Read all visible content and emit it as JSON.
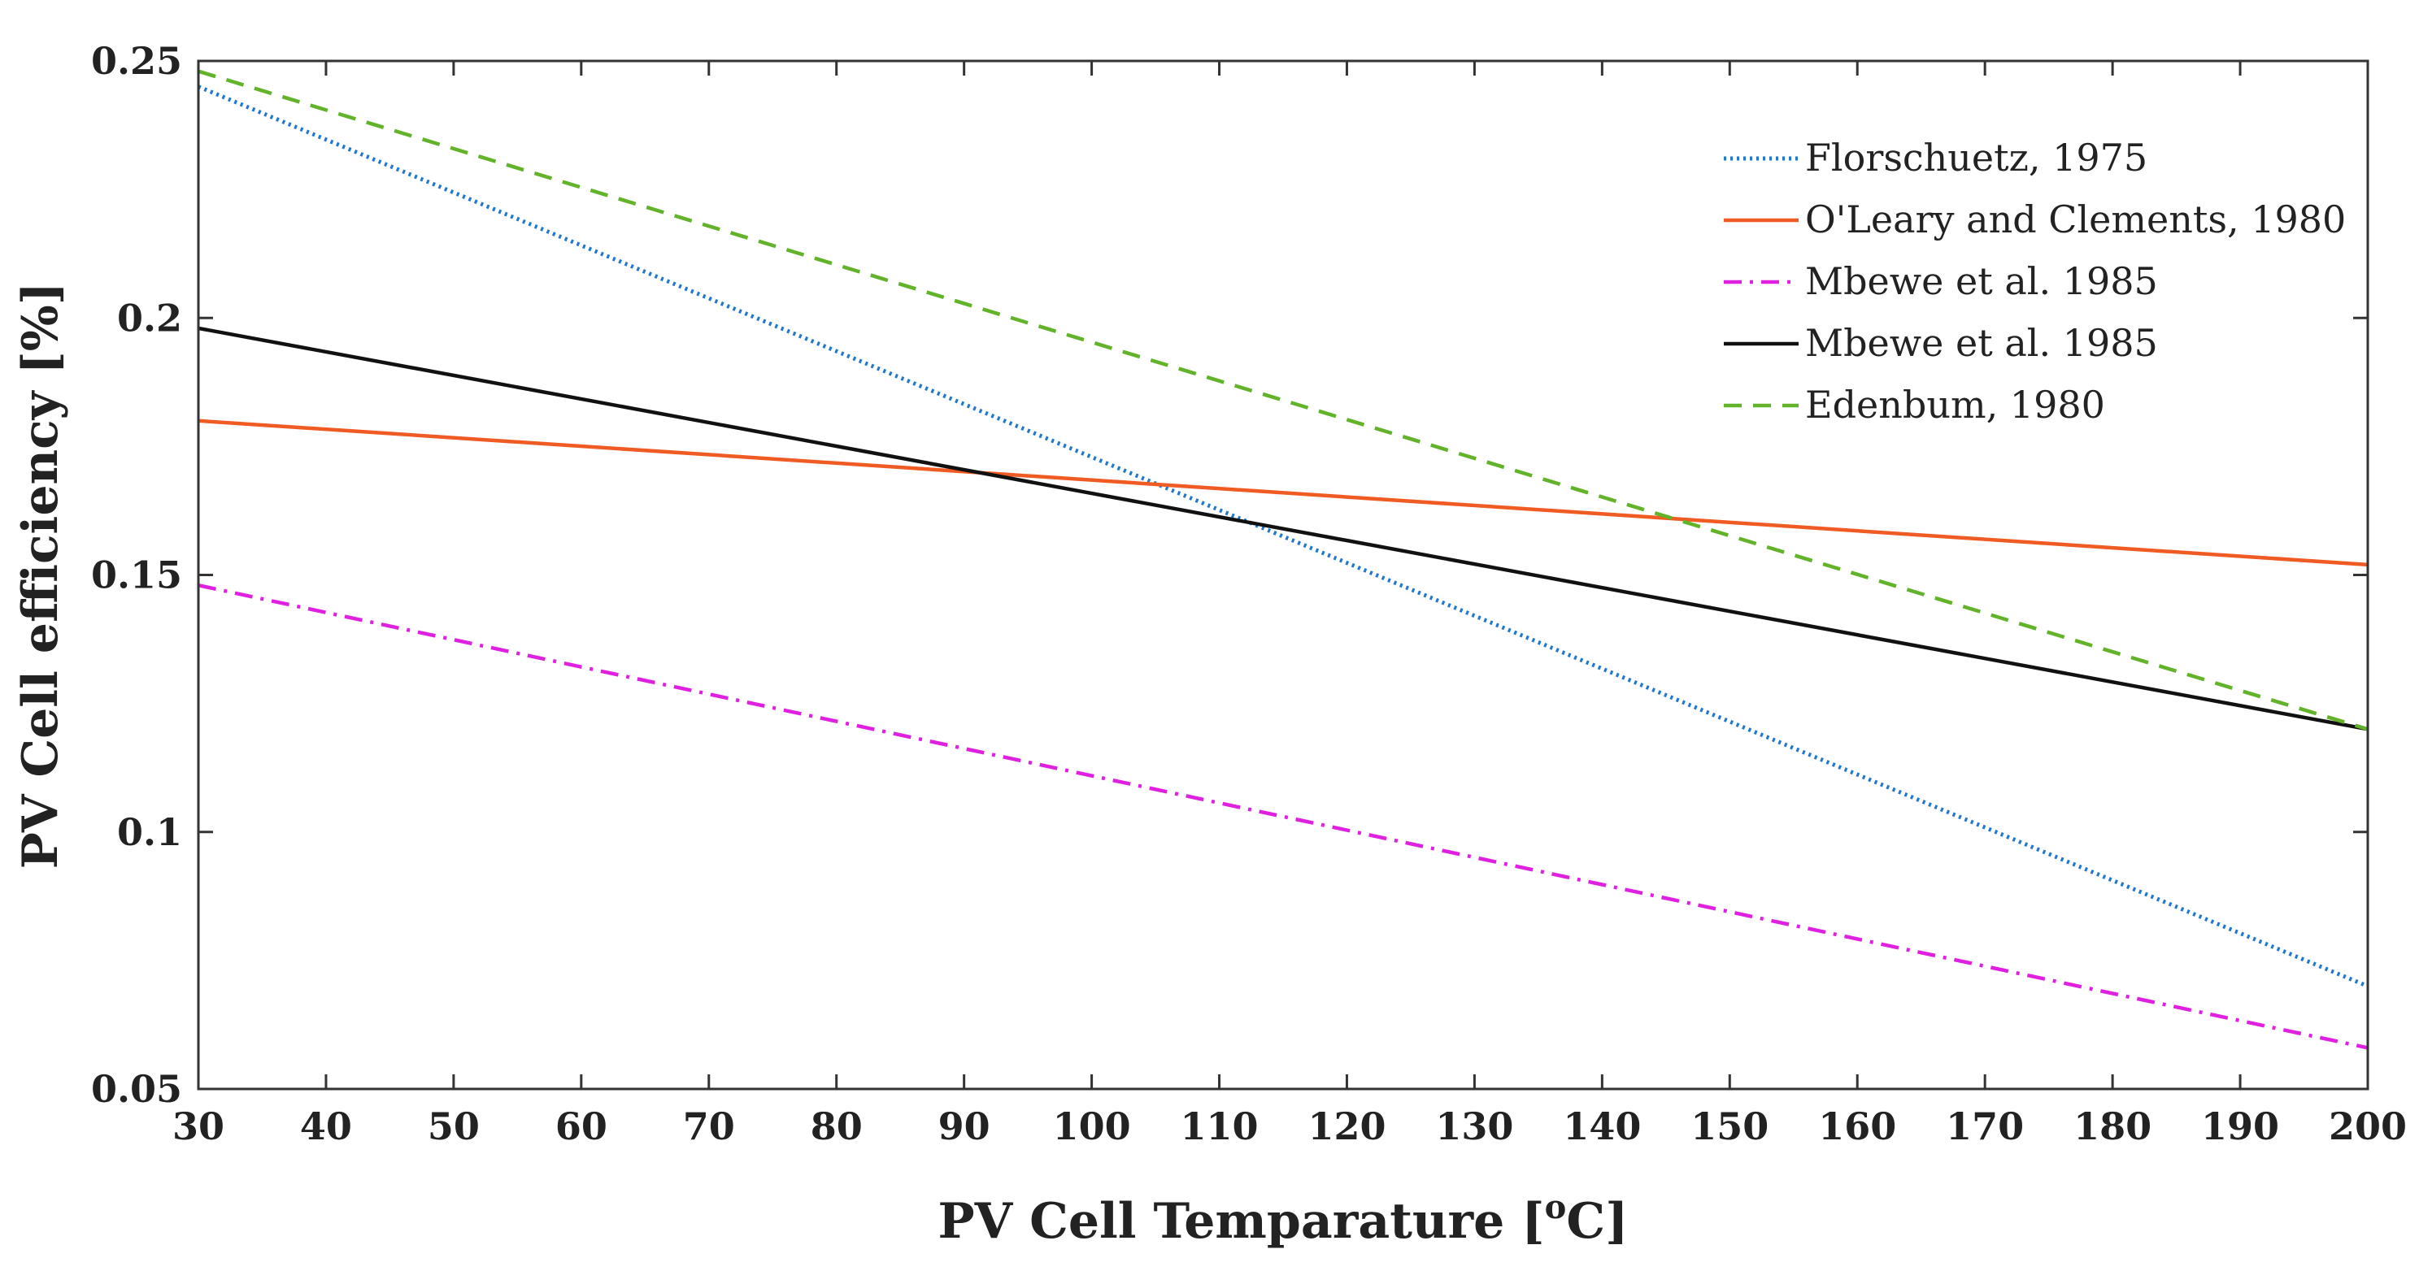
{
  "chart_data": {
    "type": "line",
    "xlabel": "PV Cell Temparature [",
    "xlabel_sup": "o",
    "xlabel_unit": "C]",
    "ylabel": "PV Cell efficiency [%]",
    "xlim": [
      30,
      200
    ],
    "ylim": [
      0.05,
      0.25
    ],
    "x_ticks": [
      30,
      40,
      50,
      60,
      70,
      80,
      90,
      100,
      110,
      120,
      130,
      140,
      150,
      160,
      170,
      180,
      190,
      200
    ],
    "y_ticks": [
      0.05,
      0.1,
      0.15,
      0.2,
      0.25
    ],
    "y_tick_labels": [
      "0.05",
      "0.1",
      "0.15",
      "0.2",
      "0.25"
    ],
    "grid": false,
    "legend_position": "top-right",
    "series": [
      {
        "name": "Florschuetz, 1975",
        "style": "dotted",
        "color": "#1f77d0",
        "x": [
          30,
          200
        ],
        "y": [
          0.245,
          0.07
        ]
      },
      {
        "name": "O'Leary and Clements, 1980",
        "style": "solid",
        "color": "#f05a23",
        "x": [
          30,
          200
        ],
        "y": [
          0.18,
          0.152
        ]
      },
      {
        "name": "Mbewe et al. 1985",
        "style": "dashdot",
        "color": "#e020e0",
        "x": [
          30,
          200
        ],
        "y": [
          0.148,
          0.058
        ]
      },
      {
        "name": "Mbewe et al. 1985",
        "style": "solid",
        "color": "#111111",
        "x": [
          30,
          200
        ],
        "y": [
          0.198,
          0.12
        ]
      },
      {
        "name": "Edenbum, 1980",
        "style": "dashed",
        "color": "#62b32a",
        "x": [
          30,
          200
        ],
        "y": [
          0.248,
          0.12
        ]
      }
    ]
  }
}
